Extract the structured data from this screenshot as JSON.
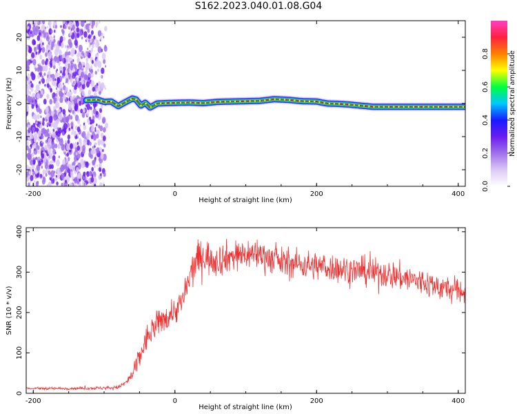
{
  "title": "S162.2023.040.01.08.G04",
  "colors": {
    "snr_line": "#f03030",
    "colormap": [
      "#ffffff",
      "#dcc8f4",
      "#a070ea",
      "#6a1cf0",
      "#1a1aff",
      "#00c8ff",
      "#00ff40",
      "#ffff00",
      "#ff8000",
      "#ff2040",
      "#ff40c0"
    ],
    "spectrum_ridge": "#e8141e",
    "spectrum_core": "#00c04a",
    "scatter": "#7b2ee6"
  },
  "chart_data": [
    {
      "type": "heatmap",
      "xlabel": "Height of straight line (km)",
      "ylabel": "Frequency (Hz)",
      "xlim": [
        -210,
        410
      ],
      "ylim": [
        -25,
        25
      ],
      "xticks": [
        -200,
        0,
        200,
        400
      ],
      "yticks": [
        -20,
        -10,
        0,
        10,
        20
      ],
      "colorbar": {
        "label": "Normalized spectral amplitude",
        "range": [
          0,
          1
        ],
        "ticks": [
          "0.0",
          "0.2",
          "0.4",
          "0.6",
          "0.8"
        ]
      },
      "noise_region_km": [
        -210,
        -95
      ],
      "frequency_ridge": {
        "x": [
          -125,
          -110,
          -100,
          -90,
          -80,
          -70,
          -60,
          -55,
          -48,
          -42,
          -35,
          -25,
          -15,
          0,
          20,
          40,
          60,
          80,
          100,
          120,
          140,
          160,
          180,
          200,
          215,
          230,
          245,
          260,
          280,
          300,
          330,
          360,
          390,
          410
        ],
        "y": [
          1.0,
          1.2,
          0.5,
          0.6,
          -0.8,
          0.4,
          1.5,
          1.2,
          -0.6,
          0.2,
          -1.2,
          0.0,
          0.1,
          0.2,
          0.3,
          0.1,
          0.5,
          0.6,
          0.7,
          0.8,
          1.3,
          1.1,
          0.7,
          0.6,
          0.0,
          -0.1,
          -0.3,
          -0.6,
          -1.0,
          -1.0,
          -1.0,
          -1.0,
          -1.0,
          -1.0
        ]
      }
    },
    {
      "type": "line",
      "xlabel": "Height of straight line (km)",
      "ylabel": "SNR (10 * v/v)",
      "xlim": [
        -210,
        410
      ],
      "ylim": [
        0,
        410
      ],
      "xticks": [
        -200,
        0,
        200,
        400
      ],
      "yticks": [
        0,
        100,
        200,
        300,
        400
      ],
      "series": [
        {
          "x": [
            -210,
            -150,
            -100,
            -80,
            -70,
            -60,
            -50,
            -40,
            -30,
            -20,
            -10,
            0,
            10,
            20,
            30,
            40,
            60,
            80,
            100,
            120,
            150,
            200,
            250,
            300,
            350,
            380,
            410
          ],
          "values": [
            12,
            12,
            13,
            15,
            25,
            45,
            90,
            135,
            160,
            180,
            190,
            205,
            225,
            280,
            330,
            340,
            330,
            340,
            345,
            345,
            325,
            315,
            305,
            295,
            275,
            260,
            250
          ],
          "noise": [
            3,
            3,
            4,
            4,
            8,
            15,
            30,
            30,
            30,
            30,
            30,
            30,
            35,
            40,
            40,
            40,
            38,
            35,
            35,
            35,
            33,
            32,
            32,
            32,
            32,
            30,
            30
          ]
        }
      ]
    }
  ]
}
